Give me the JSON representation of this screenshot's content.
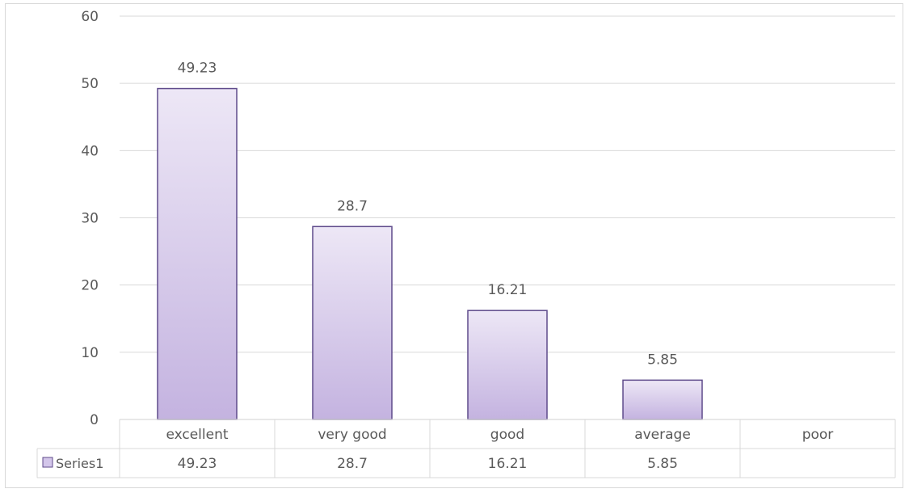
{
  "chart_data": {
    "type": "bar",
    "categories": [
      "excellent",
      "very good",
      "good",
      "average",
      "poor"
    ],
    "series": [
      {
        "name": "Series1",
        "values": [
          49.23,
          28.7,
          16.21,
          5.85,
          null
        ],
        "value_labels": [
          "49.23",
          "28.7",
          "16.21",
          "5.85",
          ""
        ]
      }
    ],
    "ylim": [
      0,
      60
    ],
    "yticks": [
      0,
      10,
      20,
      30,
      40,
      50,
      60
    ],
    "title": "",
    "xlabel": "",
    "ylabel": "",
    "grid": true,
    "data_table": true,
    "legend": "in data table",
    "colors": {
      "bar_fill_top": "#ede7f6",
      "bar_fill_bottom": "#c4b3e0",
      "bar_stroke": "#5f4b8b",
      "legend_key_fill": "#d3c6ea",
      "grid": "#d9d9d9",
      "text": "#595959"
    }
  }
}
